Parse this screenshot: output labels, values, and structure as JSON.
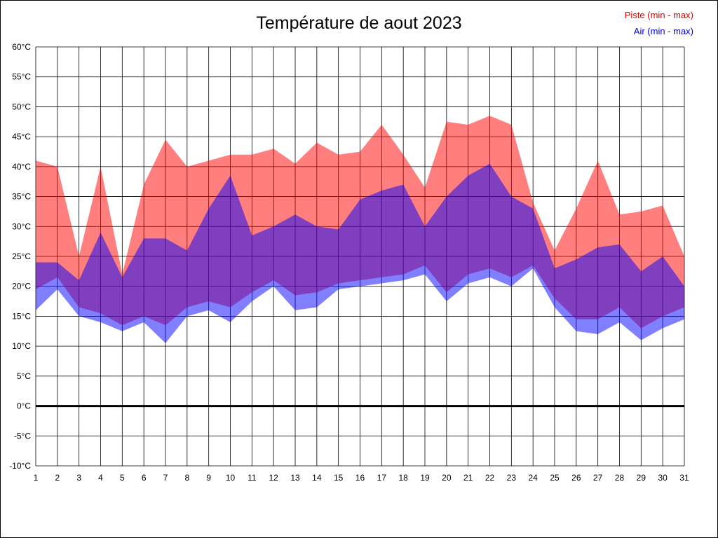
{
  "title": "Température de aout 2023",
  "legend": {
    "piste": "Piste (min - max)",
    "air": "Air (min - max)"
  },
  "colors": {
    "piste": "#dd0000",
    "air": "#0000dd"
  },
  "chart_data": {
    "type": "area",
    "title": "Température de aout 2023",
    "xlabel": "",
    "ylabel": "",
    "x": [
      1,
      2,
      3,
      4,
      5,
      6,
      7,
      8,
      9,
      10,
      11,
      12,
      13,
      14,
      15,
      16,
      17,
      18,
      19,
      20,
      21,
      22,
      23,
      24,
      25,
      26,
      27,
      28,
      29,
      30,
      31
    ],
    "ylim": [
      -10,
      60
    ],
    "ytick_step": 5,
    "ytick_suffix": "°C",
    "grid": true,
    "zero_line_width": 3,
    "band_opacity": 0.5,
    "legend_position": "top-right",
    "series": [
      {
        "name": "Piste (min - max)",
        "color": "#ff0000",
        "min": [
          19.5,
          21.5,
          16.5,
          15.5,
          13.5,
          15,
          13.5,
          16.5,
          17.5,
          16.5,
          19,
          21,
          18.5,
          19,
          20.5,
          21,
          21.5,
          22,
          23.5,
          19,
          22,
          23,
          21.5,
          23.5,
          18,
          14.5,
          14.5,
          16.5,
          13,
          15,
          16.5
        ],
        "max": [
          41,
          40,
          25,
          40,
          22,
          37,
          44.5,
          40,
          41,
          42,
          42,
          43,
          40.5,
          44,
          42,
          42.5,
          47,
          42,
          36.5,
          47.5,
          47,
          48.5,
          47,
          34,
          26,
          33,
          41,
          32,
          32.5,
          33.5,
          25
        ]
      },
      {
        "name": "Air (min - max)",
        "color": "#0000ff",
        "min": [
          16,
          19.5,
          15,
          14,
          12.5,
          14,
          10.5,
          15,
          16,
          14,
          17.5,
          20,
          16,
          16.5,
          19.5,
          20,
          20.5,
          21,
          22,
          17.5,
          20.5,
          21.5,
          20,
          23,
          16.5,
          12.5,
          12,
          14,
          11,
          13,
          14.5
        ],
        "max": [
          24,
          24,
          21,
          29,
          21.5,
          28,
          28,
          26,
          33,
          38.5,
          28.5,
          30,
          32,
          30,
          29.5,
          34.5,
          36,
          37,
          30,
          35,
          38.5,
          40.5,
          35,
          33,
          23,
          24.5,
          26.5,
          27,
          22.5,
          25,
          20
        ]
      }
    ]
  }
}
